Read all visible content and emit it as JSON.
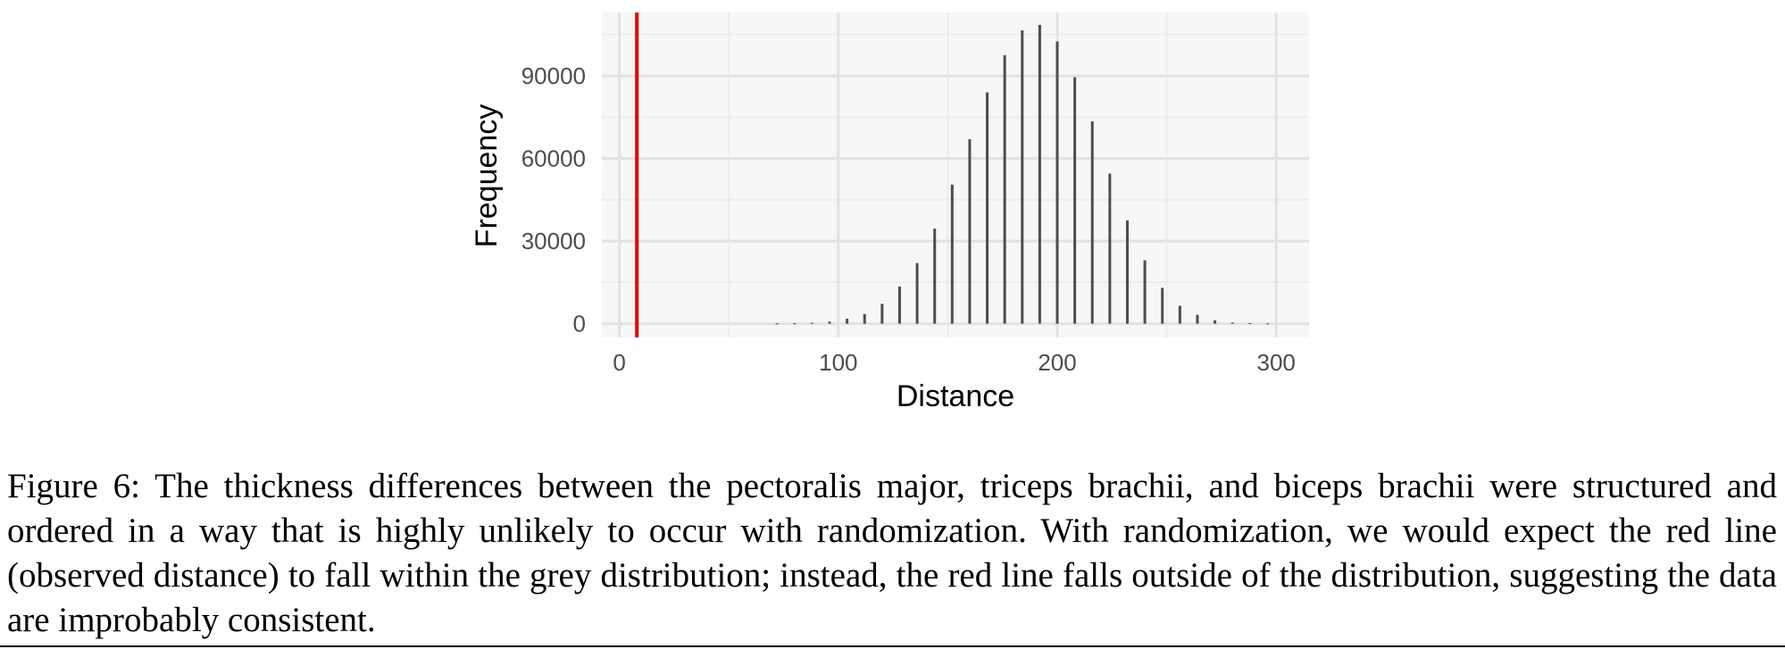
{
  "chart_data": {
    "type": "bar",
    "xlabel": "Distance",
    "ylabel": "Frequency",
    "xlim": [
      -8,
      315
    ],
    "ylim": [
      -5000,
      113000
    ],
    "xticks": [
      0,
      100,
      200,
      300
    ],
    "yticks": [
      0,
      30000,
      60000,
      90000
    ],
    "xtick_labels": [
      "0",
      "100",
      "200",
      "300"
    ],
    "ytick_labels": [
      "0",
      "30000",
      "60000",
      "90000"
    ],
    "grid": true,
    "legend": "none",
    "bar_color": "#4d4d4d",
    "background": "#f7f7f7",
    "x": [
      72,
      80,
      88,
      96,
      104,
      112,
      120,
      128,
      136,
      144,
      152,
      160,
      168,
      176,
      184,
      192,
      200,
      208,
      216,
      224,
      232,
      240,
      248,
      256,
      264,
      272,
      280,
      288,
      296
    ],
    "values": [
      100,
      150,
      300,
      700,
      1800,
      3500,
      7200,
      13500,
      22000,
      34500,
      50500,
      67000,
      84000,
      97500,
      106500,
      108500,
      102500,
      89500,
      73500,
      54500,
      37500,
      23000,
      13000,
      6500,
      3200,
      1200,
      400,
      200,
      100
    ],
    "observed_line": {
      "x": 8,
      "color": "#e30000"
    }
  },
  "caption": "Figure 6: The thickness differences between the pectoralis major, triceps brachii, and biceps brachii were structured and ordered in a way that is highly unlikely to occur with randomization. With randomization, we would expect the red line (observed distance) to fall within the grey distribution; instead, the red line falls outside of the distribution, suggesting the data are improbably consistent."
}
